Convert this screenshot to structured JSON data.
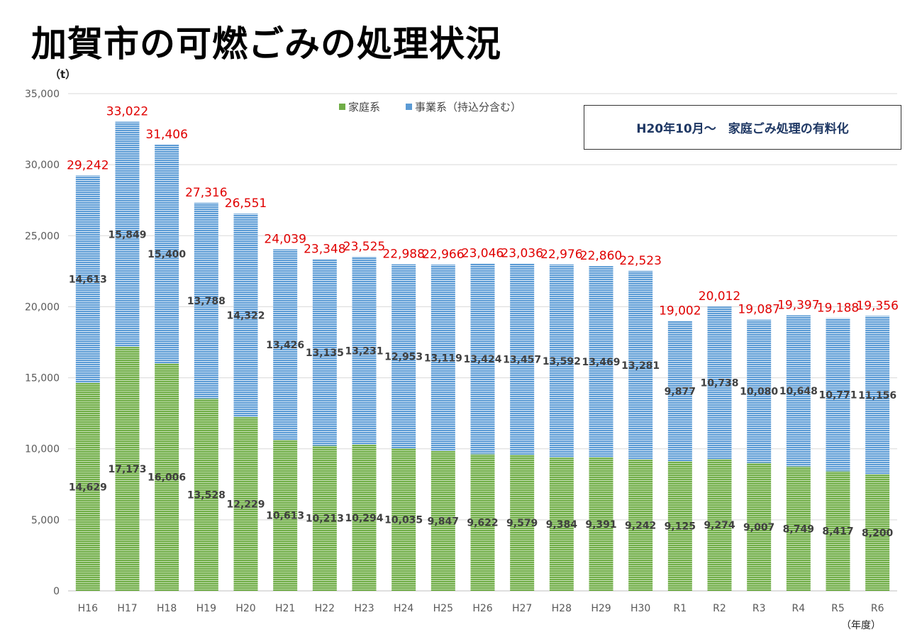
{
  "title": "加賀市の可燃ごみの処理状況",
  "note": "H20年10月～　家庭ごみ処理の有料化",
  "chart_data": {
    "type": "bar",
    "stacked": true,
    "ylabel": "（t）",
    "xlabel": "（年度）",
    "ylim": [
      0,
      35000
    ],
    "yticks": [
      0,
      5000,
      10000,
      15000,
      20000,
      25000,
      30000,
      35000
    ],
    "grid": true,
    "legend_placement": "top-center",
    "categories": [
      "H16",
      "H17",
      "H18",
      "H19",
      "H20",
      "H21",
      "H22",
      "H23",
      "H24",
      "H25",
      "H26",
      "H27",
      "H28",
      "H29",
      "H30",
      "R1",
      "R2",
      "R3",
      "R4",
      "R5",
      "R6"
    ],
    "series": [
      {
        "name": "家庭系",
        "color": "#70ad47",
        "values": [
          14629,
          17173,
          16006,
          13528,
          12229,
          10613,
          10213,
          10294,
          10035,
          9847,
          9622,
          9579,
          9384,
          9391,
          9242,
          9125,
          9274,
          9007,
          8749,
          8417,
          8200
        ]
      },
      {
        "name": "事業系（持込分含む）",
        "color": "#5b9bd5",
        "values": [
          14613,
          15849,
          15400,
          13788,
          14322,
          13426,
          13135,
          13231,
          12953,
          13119,
          13424,
          13457,
          13592,
          13469,
          13281,
          9877,
          10738,
          10080,
          10648,
          10771,
          11156
        ]
      }
    ],
    "totals": [
      29242,
      33022,
      31406,
      27316,
      26551,
      24039,
      23348,
      23525,
      22988,
      22966,
      23046,
      23036,
      22976,
      22860,
      22523,
      19002,
      20012,
      19087,
      19397,
      19188,
      19356
    ],
    "total_label_color": "#e00000"
  }
}
